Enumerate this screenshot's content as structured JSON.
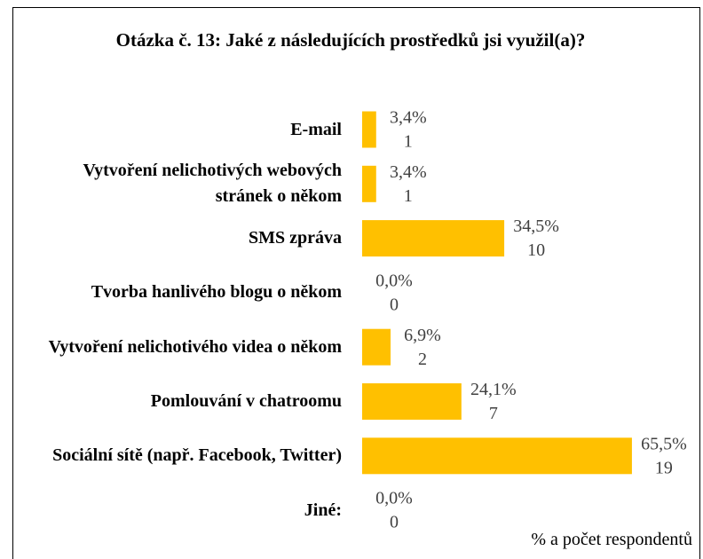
{
  "chart_data": {
    "type": "hbar",
    "title": "Otázka č. 13: Jaké z následujících prostředků jsi využil(a)?",
    "categories": [
      "E-mail",
      "Vytvoření nelichotivých webových stránek o někom",
      "SMS zpráva",
      "Tvorba hanlivého blogu o někom",
      "Vytvoření nelichotivého videa o někom",
      "Pomlouvání v chatroomu",
      "Sociální sítě (např. Facebook, Twitter)",
      "Jiné:"
    ],
    "values": [
      3.4,
      3.4,
      34.5,
      0,
      6.9,
      24.1,
      65.5,
      0
    ],
    "value_labels": [
      "3,4%",
      "3,4%",
      "34,5%",
      "0,0%",
      "6,9%",
      "24,1%",
      "65,5%",
      "0,0%"
    ],
    "counts": [
      1,
      1,
      10,
      0,
      2,
      7,
      19,
      0
    ],
    "color": "#FFC000",
    "xlabel": "% a počet respondentů"
  }
}
